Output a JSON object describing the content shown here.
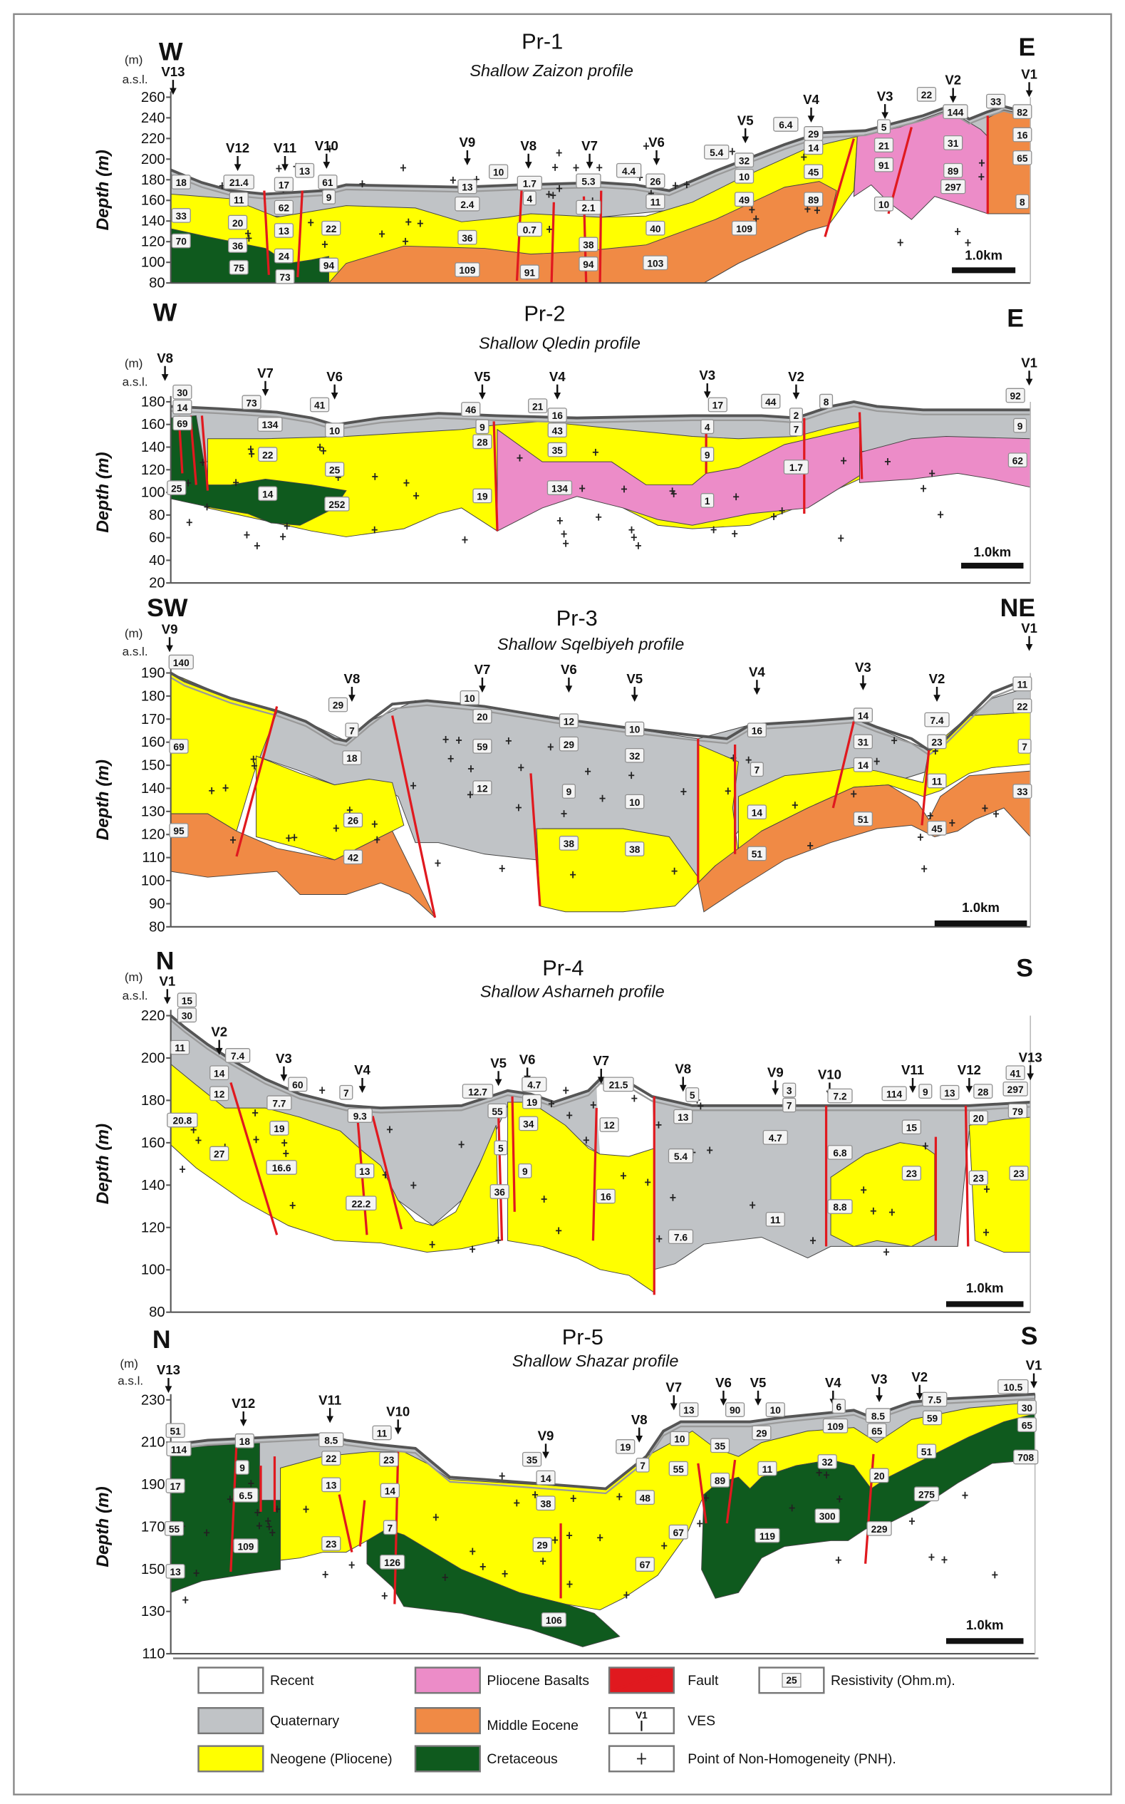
{
  "profiles": [
    {
      "title": "Pr-1",
      "subtitle": "Shallow Zaizon profile",
      "left_dir": "W",
      "right_dir": "E",
      "unit": "(m)",
      "datum": "a.s.l.",
      "y_label": "Depth (m)",
      "scale_bar": "1.0km",
      "y_ticks": [
        "260",
        "240",
        "220",
        "200",
        "180",
        "160",
        "140",
        "120",
        "100",
        "80"
      ],
      "ves": [
        "V13",
        "V12",
        "V11",
        "V10",
        "V9",
        "V8",
        "V7",
        "V6",
        "V5",
        "V4",
        "V3",
        "V2",
        "V1"
      ],
      "resistivity": [
        "18",
        "21.4",
        "17",
        "13",
        "61",
        "11",
        "62",
        "9",
        "33",
        "20",
        "13",
        "22",
        "70",
        "36",
        "24",
        "94",
        "75",
        "73",
        "13",
        "10",
        "1.7",
        "2.4",
        "4",
        "36",
        "0.7",
        "109",
        "91",
        "5.3",
        "2.1",
        "38",
        "94",
        "4.4",
        "26",
        "11",
        "40",
        "103",
        "5.4",
        "32",
        "10",
        "49",
        "109",
        "6.4",
        "29",
        "14",
        "45",
        "89",
        "5",
        "21",
        "91",
        "10",
        "22",
        "144",
        "31",
        "89",
        "297",
        "33",
        "82",
        "16",
        "65",
        "8"
      ]
    },
    {
      "title": "Pr-2",
      "subtitle": "Shallow Qledin profile",
      "left_dir": "W",
      "right_dir": "E",
      "unit": "(m)",
      "datum": "a.s.l.",
      "y_label": "Depth (m)",
      "scale_bar": "1.0km",
      "y_ticks": [
        "180",
        "160",
        "140",
        "120",
        "100",
        "80",
        "60",
        "40",
        "20"
      ],
      "ves": [
        "V8",
        "V7",
        "V6",
        "V5",
        "V4",
        "V3",
        "V2",
        "V1"
      ],
      "resistivity": [
        "30",
        "14",
        "69",
        "73",
        "134",
        "41",
        "10",
        "22",
        "25",
        "14",
        "25",
        "252",
        "46",
        "9",
        "28",
        "19",
        "21",
        "16",
        "43",
        "35",
        "134",
        "17",
        "4",
        "9",
        "1",
        "44",
        "2",
        "7",
        "1.7",
        "8",
        "92",
        "9",
        "62"
      ]
    },
    {
      "title": "Pr-3",
      "subtitle": "Shallow Sqelbiyeh profile",
      "left_dir": "SW",
      "right_dir": "NE",
      "unit": "(m)",
      "datum": "a.s.l.",
      "y_label": "Depth (m)",
      "scale_bar": "1.0km",
      "y_ticks": [
        "190",
        "180",
        "170",
        "160",
        "150",
        "140",
        "130",
        "120",
        "110",
        "100",
        "90",
        "80"
      ],
      "ves": [
        "V9",
        "V8",
        "V7",
        "V6",
        "V5",
        "V4",
        "V3",
        "V2",
        "V1"
      ],
      "resistivity": [
        "140",
        "29",
        "7",
        "18",
        "26",
        "42",
        "69",
        "95",
        "10",
        "20",
        "59",
        "12",
        "12",
        "29",
        "9",
        "38",
        "10",
        "32",
        "10",
        "38",
        "16",
        "7",
        "14",
        "51",
        "14",
        "31",
        "14",
        "51",
        "7.4",
        "23",
        "11",
        "45",
        "11",
        "22",
        "7",
        "33"
      ]
    },
    {
      "title": "Pr-4",
      "subtitle": "Shallow Asharneh profile",
      "left_dir": "N",
      "right_dir": "S",
      "unit": "(m)",
      "datum": "a.s.l.",
      "y_label": "Depth (m)",
      "scale_bar": "1.0km",
      "y_ticks": [
        "220",
        "200",
        "180",
        "160",
        "140",
        "120",
        "100",
        "80"
      ],
      "ves": [
        "V1",
        "V2",
        "V3",
        "V4",
        "V5",
        "V6",
        "V7",
        "V8",
        "V9",
        "V10",
        "V11",
        "V12",
        "V13"
      ],
      "resistivity": [
        "15",
        "30",
        "11",
        "7.4",
        "14",
        "12",
        "20.8",
        "27",
        "60",
        "7.7",
        "19",
        "16.6",
        "7",
        "9.3",
        "13",
        "22.2",
        "12.7",
        "55",
        "5",
        "36",
        "4.7",
        "19",
        "34",
        "9",
        "21.5",
        "12",
        "16",
        "5",
        "13",
        "5.4",
        "7.6",
        "3",
        "7",
        "4.7",
        "11",
        "7.2",
        "6.8",
        "8.8",
        "114",
        "9",
        "13",
        "28",
        "15",
        "23",
        "20",
        "23",
        "41",
        "297",
        "79",
        "23"
      ]
    },
    {
      "title": "Pr-5",
      "subtitle": "Shallow Shazar profile",
      "left_dir": "N",
      "right_dir": "S",
      "unit": "(m)",
      "datum": "a.s.l.",
      "y_label": "Depth (m)",
      "scale_bar": "1.0km",
      "y_ticks": [
        "230",
        "210",
        "190",
        "170",
        "150",
        "130",
        "110"
      ],
      "ves": [
        "V13",
        "V12",
        "V11",
        "V10",
        "V9",
        "V8",
        "V7",
        "V6",
        "V5",
        "V4",
        "V3",
        "V2",
        "V1"
      ],
      "resistivity": [
        "51",
        "114",
        "17",
        "55",
        "13",
        "18",
        "9",
        "6.5",
        "109",
        "8.5",
        "22",
        "13",
        "23",
        "11",
        "23",
        "14",
        "7",
        "126",
        "35",
        "14",
        "38",
        "29",
        "106",
        "19",
        "7",
        "48",
        "67",
        "13",
        "10",
        "55",
        "67",
        "90",
        "35",
        "89",
        "10",
        "29",
        "11",
        "119",
        "6",
        "109",
        "32",
        "300",
        "8.5",
        "65",
        "20",
        "229",
        "7.5",
        "59",
        "51",
        "275",
        "10.5",
        "30",
        "65",
        "708"
      ]
    }
  ],
  "legend": {
    "items": [
      {
        "label": "Recent",
        "color": "#ffffff",
        "kind": "fill"
      },
      {
        "label": "Pliocene Basalts",
        "color": "#ec8cc8",
        "kind": "fill"
      },
      {
        "label": "Fault",
        "color": "#e0191f",
        "kind": "fault"
      },
      {
        "label": "Resistivity (Ohm.m).",
        "sample": "25",
        "kind": "resistivity"
      },
      {
        "label": "Quaternary",
        "color": "#c0c3c6",
        "kind": "fill"
      },
      {
        "label": "Middle Eocene",
        "color": "#f08a45",
        "kind": "fill"
      },
      {
        "label": "VES",
        "sample": "V1",
        "kind": "ves"
      },
      {
        "label": "Neogene (Pliocene)",
        "color": "#ffff00",
        "kind": "fill"
      },
      {
        "label": "Cretaceous",
        "color": "#0f5a1e",
        "kind": "fill"
      },
      {
        "label": "Point of Non-Homogeneity (PNH).",
        "kind": "pnh"
      }
    ]
  },
  "colors": {
    "recent": "#ffffff",
    "quaternary": "#c0c3c6",
    "neogene": "#ffff00",
    "basalt": "#ec8cc8",
    "eocene": "#f08a45",
    "cretaceous": "#0f5a1e",
    "fault": "#e0191f"
  }
}
